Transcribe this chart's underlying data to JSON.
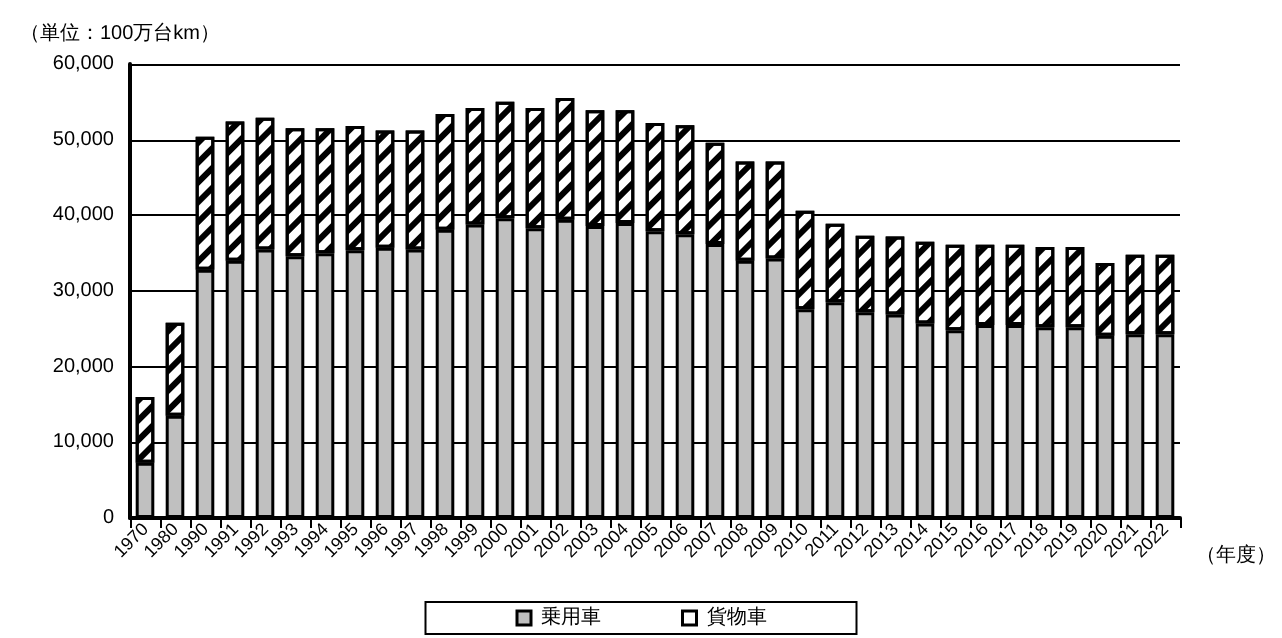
{
  "chart_data": {
    "type": "bar",
    "stacked": true,
    "ylabel": "（単位：100万台km）",
    "xlabel": "（年度）",
    "categories": [
      "1970",
      "1980",
      "1990",
      "1991",
      "1992",
      "1993",
      "1994",
      "1995",
      "1996",
      "1997",
      "1998",
      "1999",
      "2000",
      "2001",
      "2002",
      "2003",
      "2004",
      "2005",
      "2006",
      "2007",
      "2008",
      "2009",
      "2010",
      "2011",
      "2012",
      "2013",
      "2014",
      "2015",
      "2016",
      "2017",
      "2018",
      "2019",
      "2020",
      "2021",
      "2022"
    ],
    "series": [
      {
        "name": "乗用車",
        "color": "#c0c0c0",
        "values": [
          7300,
          13500,
          32800,
          34000,
          35500,
          34600,
          35000,
          35400,
          35700,
          35500,
          38100,
          38800,
          39600,
          38300,
          39400,
          38600,
          39000,
          37900,
          37500,
          36200,
          34000,
          34300,
          27600,
          28500,
          27200,
          26900,
          25700,
          24800,
          25500,
          25500,
          25200,
          25200,
          24100,
          24300,
          24300
        ]
      },
      {
        "name": "貨物車",
        "color": "#ffffff",
        "values": [
          8700,
          12300,
          17600,
          18400,
          17400,
          16900,
          16500,
          16400,
          15500,
          15700,
          15300,
          15400,
          15400,
          15900,
          16100,
          15300,
          14900,
          14300,
          14400,
          13400,
          13100,
          12800,
          13000,
          10400,
          10100,
          10300,
          10800,
          11300,
          10600,
          10600,
          10600,
          10600,
          9600,
          10500,
          10500
        ]
      }
    ],
    "ylim": [
      0,
      60000
    ],
    "yticks": [
      {
        "value": 0,
        "label": "0"
      },
      {
        "value": 10000,
        "label": "10,000"
      },
      {
        "value": 20000,
        "label": "20,000"
      },
      {
        "value": 30000,
        "label": "30,000"
      },
      {
        "value": 40000,
        "label": "40,000"
      },
      {
        "value": 50000,
        "label": "50,000"
      },
      {
        "value": 60000,
        "label": "60,000"
      }
    ],
    "grid": "y",
    "legend": "bottom"
  }
}
